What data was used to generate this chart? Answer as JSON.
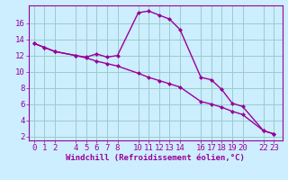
{
  "xlabel": "Windchill (Refroidissement éolien,°C)",
  "line1_x": [
    0,
    1,
    2,
    4,
    5,
    6,
    7,
    8,
    10,
    11,
    12,
    13,
    14,
    16,
    17,
    18,
    19,
    20,
    22,
    23
  ],
  "line1_y": [
    13.5,
    13.0,
    12.5,
    12.0,
    11.8,
    12.2,
    11.8,
    12.0,
    17.3,
    17.5,
    17.0,
    16.5,
    15.2,
    9.3,
    9.0,
    7.8,
    6.1,
    5.7,
    2.7,
    2.3
  ],
  "line2_x": [
    0,
    1,
    2,
    4,
    5,
    6,
    7,
    8,
    10,
    11,
    12,
    13,
    14,
    16,
    17,
    18,
    19,
    20,
    22,
    23
  ],
  "line2_y": [
    13.5,
    13.0,
    12.5,
    12.0,
    11.7,
    11.3,
    11.0,
    10.7,
    9.8,
    9.3,
    8.9,
    8.5,
    8.1,
    6.3,
    6.0,
    5.6,
    5.1,
    4.7,
    2.7,
    2.3
  ],
  "xticks": [
    0,
    1,
    2,
    4,
    5,
    6,
    7,
    8,
    10,
    11,
    12,
    13,
    14,
    16,
    17,
    18,
    19,
    20,
    22,
    23
  ],
  "yticks": [
    2,
    4,
    6,
    8,
    10,
    12,
    14,
    16
  ],
  "ylim": [
    1.5,
    18.2
  ],
  "xlim": [
    -0.5,
    23.8
  ],
  "line_color": "#990099",
  "bg_color": "#cceeff",
  "grid_color": "#99cccc",
  "marker": "D",
  "marker_size": 2.5,
  "line_width": 1.0,
  "xlabel_fontsize": 6.5,
  "tick_fontsize": 6.5
}
